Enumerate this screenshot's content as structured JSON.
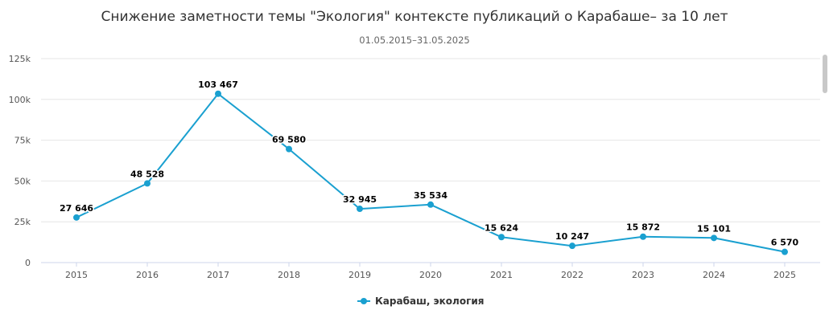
{
  "title": "Снижение заметности темы \"Экология\" контексте публикаций о Карабаше– за 10 лет",
  "subtitle": "01.05.2015–31.05.2025",
  "colors": {
    "series": "#1aa0d0",
    "grid": "#e6e6e6",
    "text": "#333333"
  },
  "chart_data": {
    "type": "line",
    "x": [
      "2015",
      "2016",
      "2017",
      "2018",
      "2019",
      "2020",
      "2021",
      "2022",
      "2023",
      "2024",
      "2025"
    ],
    "series": [
      {
        "name": "Карабаш, экология",
        "values": [
          27646,
          48528,
          103467,
          69580,
          32945,
          35534,
          15624,
          10247,
          15872,
          15101,
          6570
        ],
        "labels": [
          "27 646",
          "48 528",
          "103 467",
          "69 580",
          "32 945",
          "35 534",
          "15 624",
          "10 247",
          "15 872",
          "15 101",
          "6 570"
        ]
      }
    ],
    "ylim": [
      0,
      125000
    ],
    "yticks": [
      0,
      25000,
      50000,
      75000,
      100000,
      125000
    ],
    "ytick_labels": [
      "0",
      "25k",
      "50k",
      "75k",
      "100k",
      "125k"
    ],
    "grid": true,
    "legend": "bottom-center"
  }
}
